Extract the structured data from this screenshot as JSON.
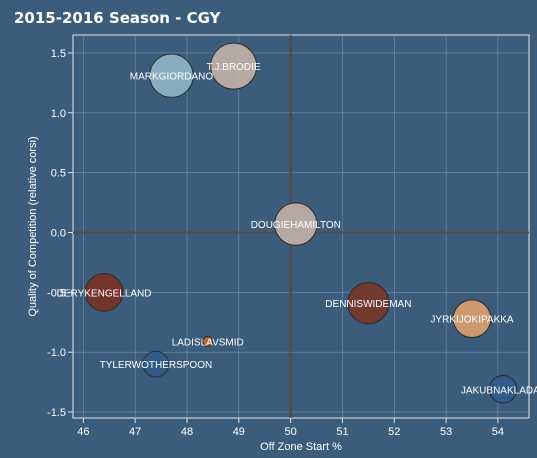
{
  "chart_data": {
    "type": "scatter",
    "title": "2015-2016 Season - CGY",
    "xlabel": "Off Zone Start %",
    "ylabel": "Quality of Competition (relative corsi)",
    "xlim": [
      45.8,
      54.6
    ],
    "ylim": [
      -1.55,
      1.65
    ],
    "xticks": [
      46,
      47,
      48,
      49,
      50,
      51,
      52,
      53,
      54
    ],
    "yticks": [
      -1.5,
      -1.0,
      -0.5,
      0.0,
      0.5,
      1.0,
      1.5
    ],
    "ytick_labels": [
      "-1.5",
      "-1.0",
      "-0.5",
      "0.0",
      "0.5",
      "1.0",
      "1.5"
    ],
    "reference_lines": {
      "x": 50,
      "y": 0
    },
    "grid": true,
    "points": [
      {
        "label": "MARKGIORDANO",
        "x": 47.7,
        "y": 1.31,
        "size": 1.0,
        "color": "#93b8c9"
      },
      {
        "label": "T.J.BRODIE",
        "x": 48.9,
        "y": 1.39,
        "size": 1.12,
        "color": "#c7b4a8"
      },
      {
        "label": "DOUGIEHAMILTON",
        "x": 50.1,
        "y": 0.07,
        "size": 0.95,
        "color": "#c7b4a8"
      },
      {
        "label": "DERYKENGELLAND",
        "x": 46.4,
        "y": -0.5,
        "size": 0.75,
        "color": "#7b2f22"
      },
      {
        "label": "DENNISWIDEMAN",
        "x": 51.5,
        "y": -0.59,
        "size": 0.9,
        "color": "#7b3624"
      },
      {
        "label": "JYRKIJOKIPAKKA",
        "x": 53.5,
        "y": -0.72,
        "size": 0.75,
        "color": "#e0a26e"
      },
      {
        "label": "LADISLAVSMID",
        "x": 48.4,
        "y": -0.91,
        "size": 0.05,
        "color": "#d26a2e"
      },
      {
        "label": "TYLERWOTHERSPOON",
        "x": 47.4,
        "y": -1.1,
        "size": 0.35,
        "color": "#2f5a8a"
      },
      {
        "label": "JAKUBNAKLADAL",
        "x": 54.1,
        "y": -1.31,
        "size": 0.4,
        "color": "#2f5a8a"
      }
    ]
  }
}
